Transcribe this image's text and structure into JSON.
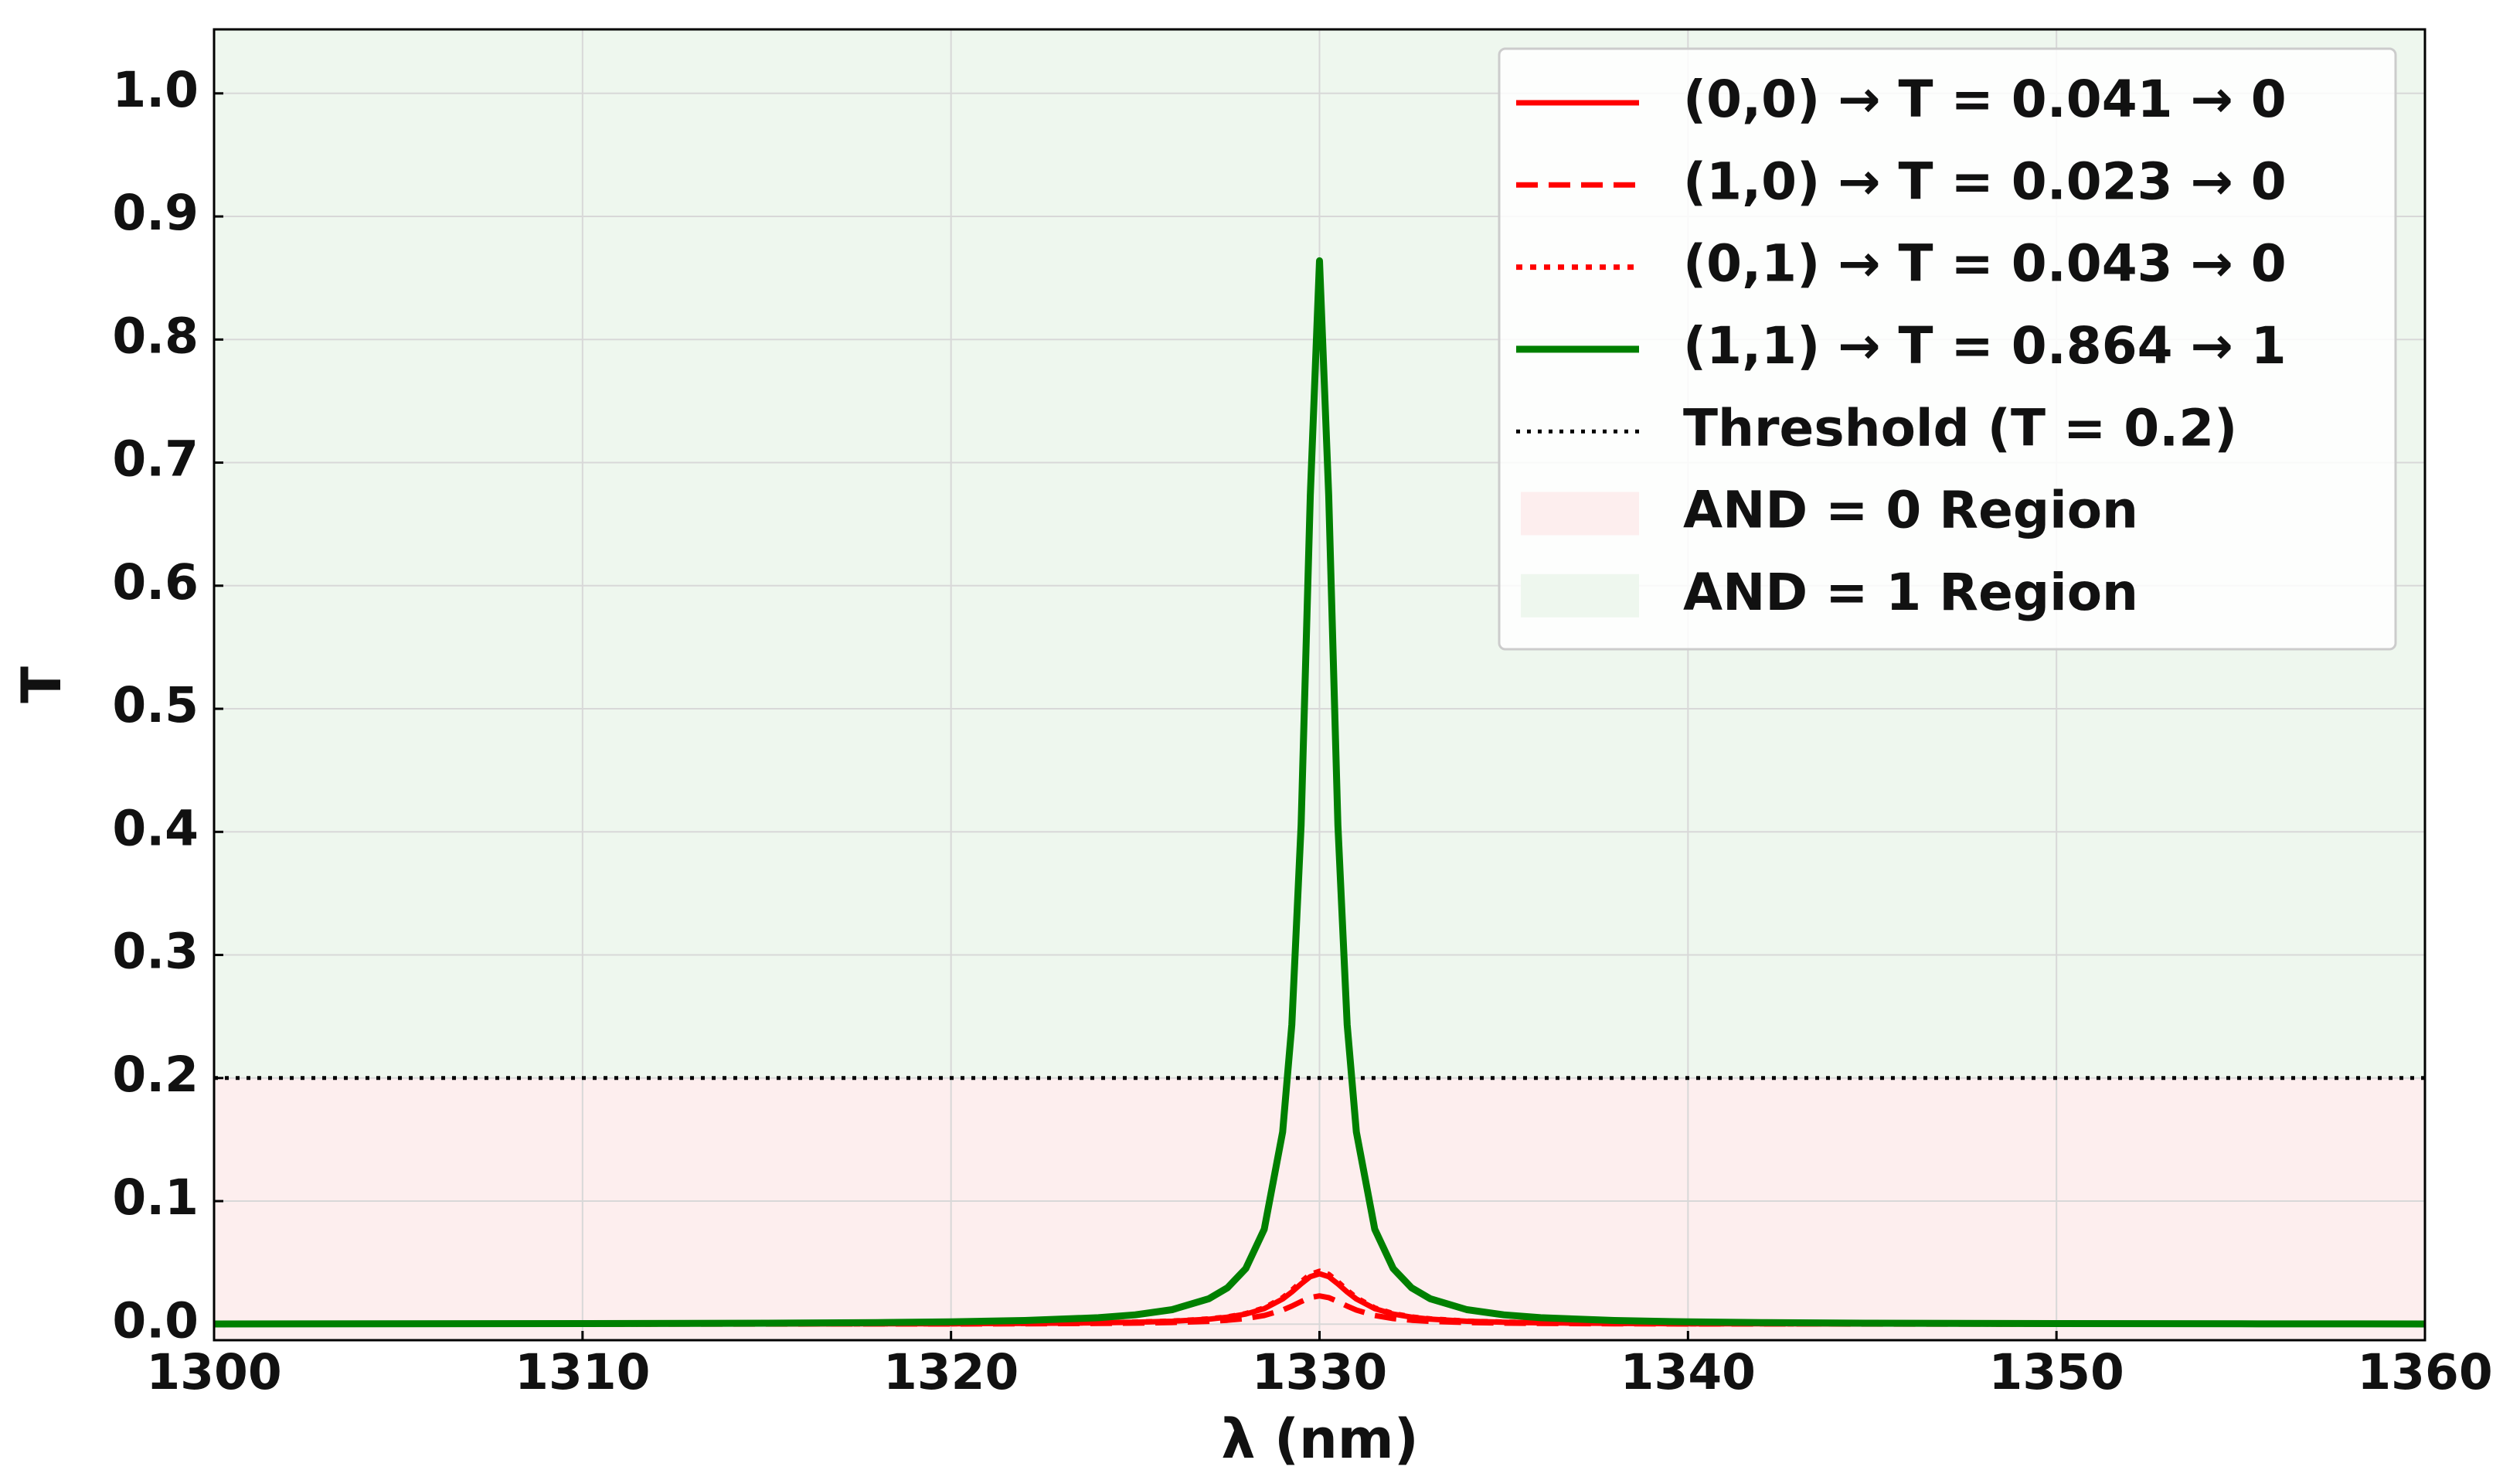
{
  "chart_data": {
    "type": "line",
    "xlabel": "λ (nm)",
    "ylabel": "T",
    "xlim": [
      1300,
      1360
    ],
    "xticks": [
      1300,
      1310,
      1320,
      1330,
      1340,
      1350,
      1360
    ],
    "ylim": [
      -0.013,
      1.052
    ],
    "yticks": [
      {
        "value": 0,
        "label": "0.0"
      },
      0.1,
      0.2,
      0.3,
      0.4,
      0.5,
      0.6,
      0.7,
      0.8,
      0.9,
      {
        "value": 1,
        "label": "1.0"
      }
    ],
    "grid": true,
    "legend": "upper right",
    "x": [
      1300,
      1305,
      1310,
      1315,
      1318,
      1320,
      1322,
      1324,
      1325,
      1326,
      1327,
      1327.5,
      1328,
      1328.5,
      1329,
      1329.25,
      1329.5,
      1329.75,
      1330,
      1330.25,
      1330.5,
      1330.75,
      1331,
      1331.5,
      1332,
      1332.5,
      1333,
      1334,
      1335,
      1336,
      1338,
      1340,
      1342,
      1345,
      1350,
      1355,
      1360
    ],
    "series": [
      {
        "name": "(0,0) → T = 0.041 → 0",
        "color": "#ff0000",
        "dash": "solid",
        "values": [
          0,
          0.0001,
          0.0001,
          0.0002,
          0.0003,
          0.0004,
          0.0006,
          0.0011,
          0.0016,
          0.0024,
          0.0041,
          0.0057,
          0.0082,
          0.0126,
          0.0205,
          0.0262,
          0.0328,
          0.0386,
          0.041,
          0.0386,
          0.0328,
          0.0262,
          0.0205,
          0.0126,
          0.0082,
          0.0057,
          0.0041,
          0.0024,
          0.0016,
          0.0011,
          0.0006,
          0.0004,
          0.0003,
          0.0002,
          0.0001,
          0.0001,
          0
        ]
      },
      {
        "name": "(1,0) → T = 0.023 → 0",
        "color": "#ff0000",
        "dash": "dashed",
        "values": [
          0,
          0,
          0.0001,
          0.0001,
          0.0002,
          0.0002,
          0.0004,
          0.0006,
          0.0009,
          0.0014,
          0.0023,
          0.0032,
          0.0046,
          0.0071,
          0.0115,
          0.0147,
          0.0184,
          0.0216,
          0.023,
          0.0216,
          0.0184,
          0.0147,
          0.0115,
          0.0071,
          0.0046,
          0.0032,
          0.0023,
          0.0014,
          0.0009,
          0.0006,
          0.0004,
          0.0002,
          0.0002,
          0.0001,
          0.0001,
          0,
          0
        ]
      },
      {
        "name": "(0,1) → T = 0.043 → 0",
        "color": "#ff0000",
        "dash": "dotted",
        "values": [
          0,
          0.0001,
          0.0001,
          0.0002,
          0.0003,
          0.0004,
          0.0007,
          0.0012,
          0.0017,
          0.0025,
          0.0043,
          0.0059,
          0.0086,
          0.0132,
          0.0215,
          0.0275,
          0.0344,
          0.0405,
          0.043,
          0.0405,
          0.0344,
          0.0275,
          0.0215,
          0.0132,
          0.0086,
          0.0059,
          0.0043,
          0.0025,
          0.0017,
          0.0012,
          0.0007,
          0.0004,
          0.0003,
          0.0002,
          0.0001,
          0.0001,
          0
        ]
      },
      {
        "name": "(1,1) → T = 0.864 → 1",
        "color": "#008000",
        "dash": "solid",
        "values": [
          0.0002,
          0.0003,
          0.0005,
          0.0008,
          0.0013,
          0.0019,
          0.003,
          0.0053,
          0.0076,
          0.0118,
          0.0207,
          0.0295,
          0.0452,
          0.0772,
          0.1562,
          0.2434,
          0.4056,
          0.6734,
          0.864,
          0.6734,
          0.4056,
          0.2434,
          0.1562,
          0.0772,
          0.0452,
          0.0295,
          0.0207,
          0.0118,
          0.0076,
          0.0053,
          0.003,
          0.0019,
          0.0013,
          0.0008,
          0.0005,
          0.0003,
          0.0002
        ]
      }
    ],
    "threshold": {
      "name": "Threshold (T = 0.2)",
      "value": 0.2,
      "color": "#000000"
    },
    "regions": [
      {
        "name": "AND = 0 Region",
        "color": "#fdeeee"
      },
      {
        "name": "AND = 1 Region",
        "color": "#eef7ee"
      }
    ]
  }
}
